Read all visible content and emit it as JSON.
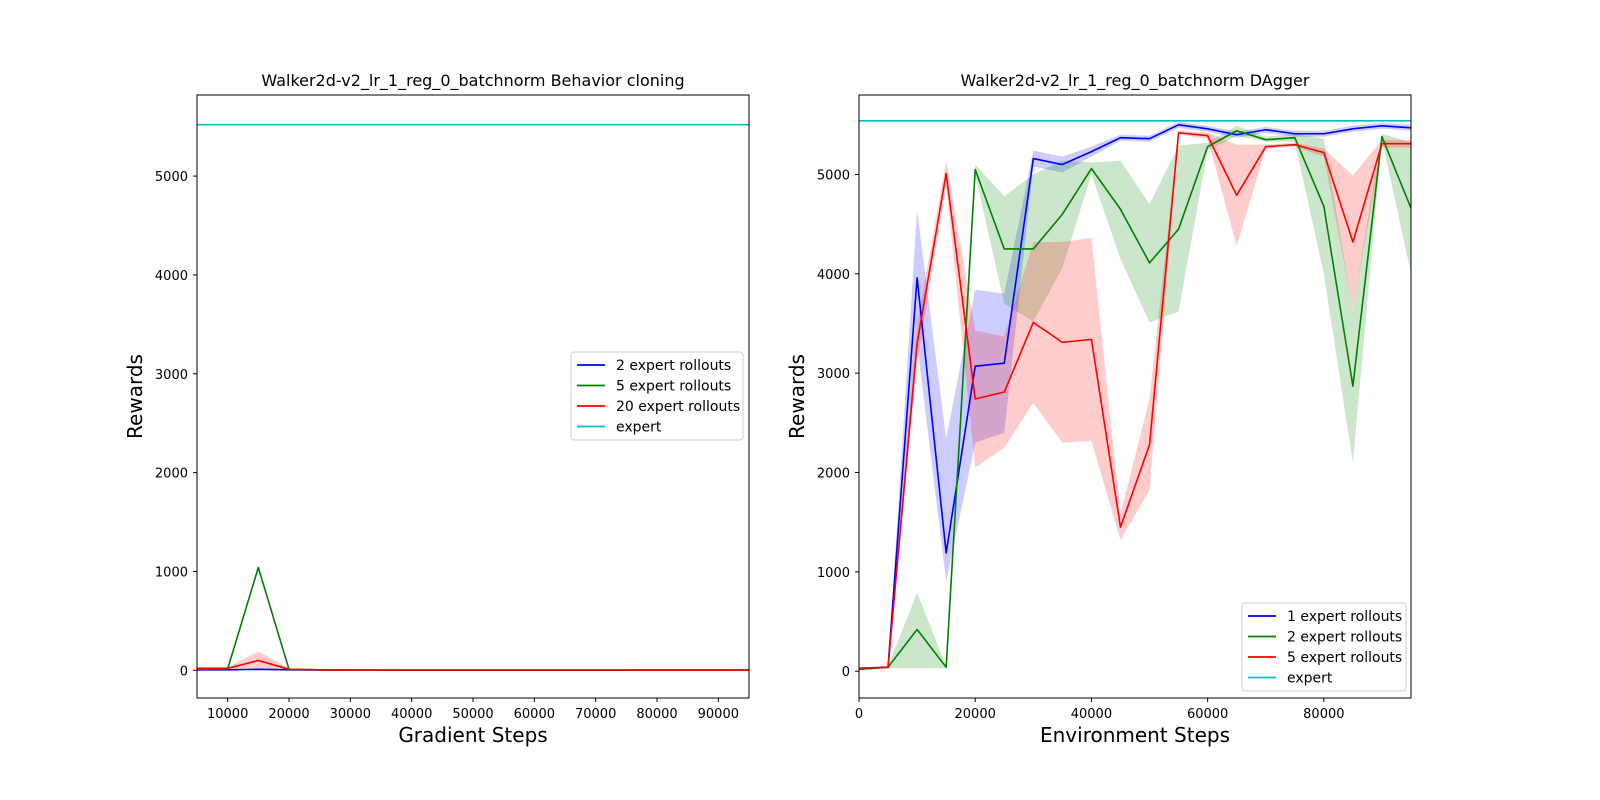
{
  "chart_data": [
    {
      "type": "line",
      "title": "Walker2d-v2_lr_1_reg_0_batchnorm Behavior cloning",
      "xlabel": "Gradient Steps",
      "ylabel": "Rewards",
      "xlim": [
        5000,
        95000
      ],
      "ylim": [
        -280,
        5820
      ],
      "xticks": [
        10000,
        20000,
        30000,
        40000,
        50000,
        60000,
        70000,
        80000,
        90000
      ],
      "yticks": [
        0,
        1000,
        2000,
        3000,
        4000,
        5000
      ],
      "legend_position": "center-right",
      "x": [
        5000,
        10000,
        15000,
        20000,
        25000,
        30000,
        35000,
        40000,
        45000,
        50000,
        55000,
        60000,
        65000,
        70000,
        75000,
        80000,
        85000,
        90000,
        95000
      ],
      "series": [
        {
          "name": "2 expert rollouts",
          "color": "#0000ff",
          "values": [
            5,
            5,
            10,
            5,
            3,
            2,
            2,
            2,
            2,
            2,
            2,
            2,
            2,
            2,
            2,
            2,
            2,
            2,
            2
          ],
          "lower": [
            2,
            2,
            3,
            2,
            1,
            1,
            1,
            1,
            1,
            1,
            1,
            1,
            1,
            1,
            1,
            1,
            1,
            1,
            1
          ],
          "upper": [
            8,
            8,
            20,
            10,
            5,
            4,
            4,
            4,
            4,
            4,
            4,
            4,
            4,
            4,
            4,
            4,
            4,
            4,
            4
          ]
        },
        {
          "name": "5 expert rollouts",
          "color": "#008000",
          "values": [
            10,
            15,
            1040,
            10,
            5,
            3,
            3,
            3,
            3,
            3,
            3,
            3,
            3,
            3,
            3,
            3,
            3,
            3,
            3
          ],
          "lower": [
            5,
            10,
            1030,
            5,
            2,
            1,
            1,
            1,
            1,
            1,
            1,
            1,
            1,
            1,
            1,
            1,
            1,
            1,
            1
          ],
          "upper": [
            15,
            20,
            1050,
            15,
            8,
            5,
            5,
            5,
            5,
            5,
            5,
            5,
            5,
            5,
            5,
            5,
            5,
            5,
            5
          ]
        },
        {
          "name": "20 expert rollouts",
          "color": "#ff0000",
          "values": [
            20,
            20,
            100,
            10,
            5,
            3,
            2,
            2,
            2,
            2,
            2,
            2,
            2,
            2,
            2,
            3,
            3,
            3,
            3
          ],
          "lower": [
            10,
            10,
            20,
            5,
            2,
            1,
            1,
            1,
            1,
            1,
            1,
            1,
            1,
            1,
            1,
            1,
            1,
            1,
            1
          ],
          "upper": [
            30,
            30,
            190,
            20,
            10,
            6,
            4,
            4,
            4,
            4,
            4,
            4,
            4,
            4,
            4,
            6,
            6,
            6,
            6
          ]
        },
        {
          "name": "expert",
          "color": "#00bfbf",
          "values": [
            5520,
            5520,
            5520,
            5520,
            5520,
            5520,
            5520,
            5520,
            5520,
            5520,
            5520,
            5520,
            5520,
            5520,
            5520,
            5520,
            5520,
            5520,
            5520
          ]
        }
      ]
    },
    {
      "type": "line",
      "title": "Walker2d-v2_lr_1_reg_0_batchnorm DAgger",
      "xlabel": "Environment Steps",
      "ylabel": "Rewards",
      "xlim": [
        0,
        95000
      ],
      "ylim": [
        -270,
        5800
      ],
      "xticks": [
        0,
        20000,
        40000,
        60000,
        80000
      ],
      "yticks": [
        0,
        1000,
        2000,
        3000,
        4000,
        5000
      ],
      "legend_position": "lower-right",
      "x": [
        0,
        5000,
        10000,
        15000,
        20000,
        25000,
        30000,
        35000,
        40000,
        45000,
        50000,
        55000,
        60000,
        65000,
        70000,
        75000,
        80000,
        85000,
        90000,
        95000
      ],
      "series": [
        {
          "name": "1 expert rollouts",
          "color": "#0000ff",
          "values": [
            20,
            40,
            3960,
            1190,
            3070,
            3100,
            5160,
            5100,
            5230,
            5370,
            5360,
            5500,
            5460,
            5400,
            5450,
            5410,
            5410,
            5460,
            5490,
            5470
          ],
          "lower": [
            10,
            30,
            3300,
            900,
            2300,
            2400,
            5080,
            5020,
            5180,
            5340,
            5330,
            5470,
            5430,
            5370,
            5420,
            5380,
            5380,
            5430,
            5460,
            5440
          ],
          "upper": [
            30,
            50,
            4640,
            2340,
            3840,
            3800,
            5240,
            5180,
            5280,
            5400,
            5390,
            5530,
            5490,
            5430,
            5480,
            5440,
            5440,
            5490,
            5520,
            5500
          ]
        },
        {
          "name": "2 expert rollouts",
          "color": "#008000",
          "values": [
            20,
            40,
            420,
            40,
            5050,
            4250,
            4250,
            4600,
            5060,
            4650,
            4110,
            4450,
            5280,
            5440,
            5350,
            5370,
            4680,
            2870,
            5380,
            4660
          ],
          "lower": [
            10,
            30,
            30,
            30,
            5000,
            3700,
            3520,
            4060,
            5000,
            4150,
            3510,
            3620,
            5240,
            5390,
            5330,
            5330,
            4000,
            2100,
            5350,
            4000
          ],
          "upper": [
            30,
            50,
            790,
            50,
            5100,
            4780,
            5000,
            5140,
            5120,
            5140,
            4700,
            5290,
            5320,
            5490,
            5380,
            5410,
            5360,
            3640,
            5410,
            5320
          ]
        },
        {
          "name": "5 expert rollouts",
          "color": "#ff0000",
          "values": [
            30,
            40,
            3300,
            5010,
            2740,
            2810,
            3510,
            3310,
            3340,
            1450,
            2280,
            5420,
            5390,
            4790,
            5280,
            5300,
            5220,
            4320,
            5310,
            5310
          ],
          "lower": [
            20,
            30,
            3100,
            4890,
            2050,
            2250,
            2700,
            2300,
            2320,
            1320,
            1820,
            5400,
            5360,
            4280,
            5260,
            5280,
            5180,
            3650,
            5270,
            5270
          ],
          "upper": [
            40,
            50,
            3500,
            5130,
            3430,
            3370,
            4320,
            4320,
            4360,
            1580,
            2740,
            5440,
            5420,
            5300,
            5300,
            5320,
            5260,
            4990,
            5350,
            5350
          ]
        },
        {
          "name": "expert",
          "color": "#00bfbf",
          "values": [
            5540,
            5540,
            5540,
            5540,
            5540,
            5540,
            5540,
            5540,
            5540,
            5540,
            5540,
            5540,
            5540,
            5540,
            5540,
            5540,
            5540,
            5540,
            5540,
            5540
          ]
        }
      ]
    }
  ]
}
